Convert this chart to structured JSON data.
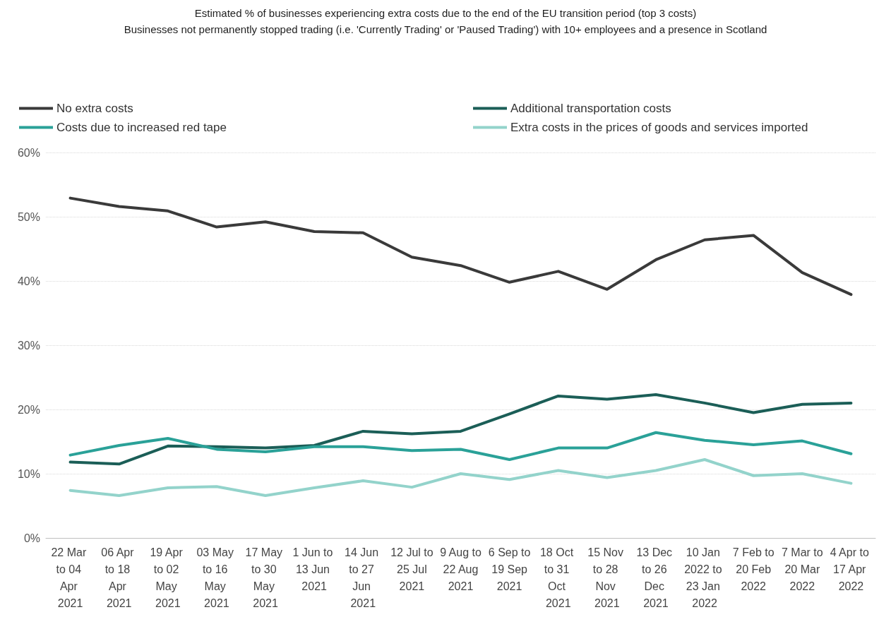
{
  "chart_data": {
    "type": "line",
    "title": "Estimated % of businesses experiencing extra costs due to the end of the EU transition period (top 3 costs)",
    "subtitle": "Businesses not permanently stopped trading (i.e. 'Currently Trading' or 'Paused Trading') with 10+ employees and a presence in Scotland",
    "categories": [
      "22 Mar to 04 Apr 2021",
      "06 Apr to 18 Apr 2021",
      "19 Apr to 02 May 2021",
      "03 May to 16 May 2021",
      "17 May to 30 May 2021",
      "1 Jun to 13 Jun 2021",
      "14 Jun to 27 Jun 2021",
      "12 Jul to 25 Jul 2021",
      "9 Aug to 22 Aug 2021",
      "6 Sep to 19 Sep 2021",
      "18 Oct to 31 Oct 2021",
      "15 Nov to 28 Nov 2021",
      "13 Dec to 26 Dec 2021",
      "10 Jan 2022 to 23 Jan 2022",
      "7 Feb to 20 Feb 2022",
      "7 Mar to 20 Mar 2022",
      "4 Apr to 17 Apr 2022"
    ],
    "series": [
      {
        "name": "No extra costs",
        "color": "#3a3a3a",
        "values": [
          52.9,
          51.6,
          50.9,
          48.4,
          49.2,
          47.7,
          47.5,
          43.7,
          42.4,
          39.8,
          41.5,
          38.7,
          43.3,
          46.4,
          47.1,
          41.3,
          37.9
        ]
      },
      {
        "name": "Additional transportation costs",
        "color": "#1b5e57",
        "values": [
          11.8,
          11.5,
          14.3,
          14.2,
          14.0,
          14.4,
          16.6,
          16.2,
          16.6,
          19.3,
          22.1,
          21.6,
          22.3,
          21.0,
          19.5,
          20.8,
          21.0
        ]
      },
      {
        "name": "Costs due to increased red tape",
        "color": "#2aa198",
        "values": [
          12.9,
          14.4,
          15.5,
          13.8,
          13.4,
          14.2,
          14.2,
          13.6,
          13.8,
          12.2,
          14.0,
          14.0,
          16.4,
          15.2,
          14.5,
          15.1,
          13.1
        ]
      },
      {
        "name": "Extra costs in the prices of goods and services imported",
        "color": "#93d3cb",
        "values": [
          7.4,
          6.6,
          7.8,
          8.0,
          6.6,
          7.8,
          8.9,
          7.9,
          10.0,
          9.1,
          10.5,
          9.4,
          10.5,
          12.2,
          9.7,
          10.0,
          8.5
        ]
      }
    ],
    "ylim": [
      0,
      60
    ],
    "yticks": [
      {
        "value": 0,
        "label": "0%"
      },
      {
        "value": 10,
        "label": "10%"
      },
      {
        "value": 20,
        "label": "20%"
      },
      {
        "value": 30,
        "label": "30%"
      },
      {
        "value": 40,
        "label": "40%"
      },
      {
        "value": 50,
        "label": "50%"
      },
      {
        "value": 60,
        "label": "60%"
      }
    ],
    "grid": "y",
    "legend": "top",
    "marker": "none",
    "line_style": "solid"
  }
}
